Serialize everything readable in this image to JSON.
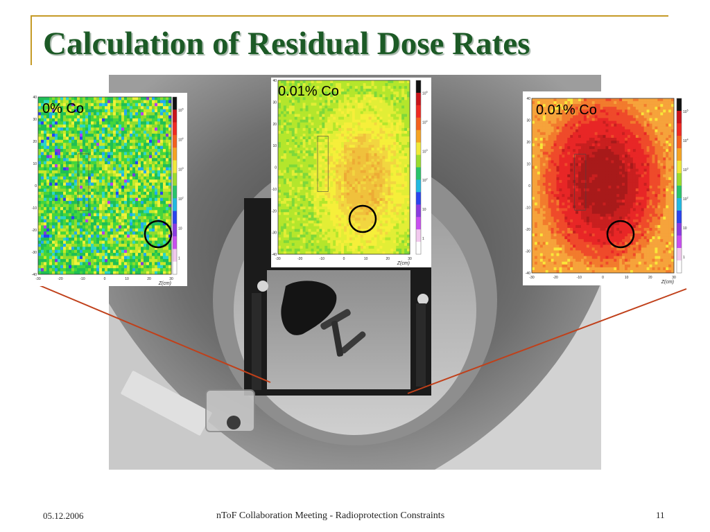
{
  "slide": {
    "title": "Calculation of Residual Dose Rates",
    "footer": {
      "date": "05.12.2006",
      "center": "nToF Collaboration Meeting - Radioprotection Constraints",
      "page": "11"
    }
  },
  "panels": [
    {
      "label": "0% Co",
      "palette": [
        "#22a8f0",
        "#2bd6c6",
        "#1fbf55",
        "#43d63c",
        "#8edc2e",
        "#c8e82a",
        "#eef23a"
      ],
      "weights": [
        0.06,
        0.08,
        0.22,
        0.24,
        0.2,
        0.14,
        0.06
      ],
      "special_colors": [
        "#b33ef0",
        "#7d3bd9",
        "#2a43ee"
      ],
      "hotspot": null
    },
    {
      "label": "0.01% Co",
      "palette": [
        "#7ed83a",
        "#b4e62c",
        "#e2ee36",
        "#f6ef3a",
        "#f2d640",
        "#f0c13c",
        "#edab35"
      ],
      "weights": [
        0.05,
        0.1,
        0.2,
        0.3,
        0.15,
        0.12,
        0.08
      ],
      "special_colors": [],
      "hotspot": "orange"
    },
    {
      "label": "0.01% Co",
      "palette": [
        "#f9e63a",
        "#f6a33b",
        "#f27b2d",
        "#ef4a2a",
        "#e82626",
        "#c81f1f",
        "#a81a1a"
      ],
      "weights": [
        0.05,
        0.12,
        0.15,
        0.25,
        0.2,
        0.15,
        0.08
      ],
      "special_colors": [],
      "hotspot": "red"
    }
  ],
  "axes": {
    "x_label": "Z(cm)",
    "x_ticks": [
      "-30",
      "-20",
      "-10",
      "0",
      "10",
      "20",
      "30"
    ],
    "y_ticks": [
      "40",
      "30",
      "20",
      "10",
      "0",
      "-10",
      "-20",
      "-30",
      "-40"
    ],
    "colorbar_ticks": [
      "10^5",
      "10^4",
      "10^3",
      "10^2",
      "10",
      "1"
    ]
  }
}
